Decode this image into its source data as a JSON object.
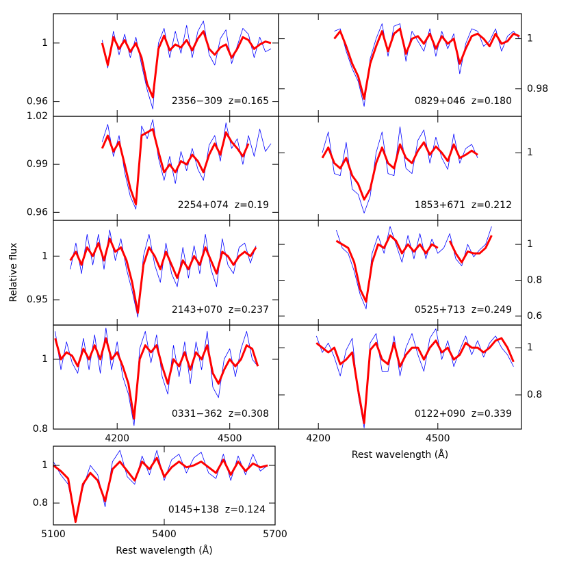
{
  "chart_data": [
    {
      "type": "line",
      "annotation": "2356−309  z=0.165",
      "yaxis_side": "left",
      "xlim": [
        4030,
        4630
      ],
      "xticks": [
        4200,
        4500
      ],
      "show_xtick_labels": false,
      "ylim": [
        0.95,
        1.02
      ],
      "yticks": [
        0.96,
        1
      ],
      "x": [
        4160,
        4175,
        4190,
        4205,
        4220,
        4235,
        4250,
        4265,
        4280,
        4295,
        4310,
        4325,
        4340,
        4355,
        4370,
        4385,
        4400,
        4415,
        4430,
        4445,
        4460,
        4475,
        4490,
        4505,
        4520,
        4535,
        4550,
        4565,
        4580,
        4595,
        4610
      ],
      "series": [
        {
          "color": "#0000ff",
          "values": [
            1.002,
            0.983,
            1.008,
            0.992,
            1.006,
            0.99,
            1.004,
            0.985,
            0.968,
            0.955,
            1.0,
            1.01,
            0.99,
            1.008,
            0.993,
            1.012,
            0.99,
            1.008,
            1.015,
            0.992,
            0.985,
            1.003,
            1.009,
            0.986,
            0.998,
            1.01,
            1.006,
            0.99,
            1.004,
            0.994,
            0.996
          ]
        },
        {
          "color": "#ff0000",
          "values": [
            1.0,
            0.985,
            1.004,
            0.996,
            1.002,
            0.994,
            1.0,
            0.99,
            0.972,
            0.963,
            0.996,
            1.005,
            0.995,
            0.999,
            0.997,
            1.002,
            0.995,
            1.003,
            1.008,
            0.996,
            0.992,
            0.997,
            0.999,
            0.99,
            0.996,
            1.004,
            1.002,
            0.996,
            0.999,
            1.001,
            1.0
          ]
        }
      ]
    },
    {
      "type": "line",
      "annotation": "0829+046  z=0.180",
      "yaxis_side": "right",
      "xlim": [
        4100,
        4710
      ],
      "xticks": [
        4200,
        4500
      ],
      "show_xtick_labels": false,
      "ylim": [
        0.969,
        1.01
      ],
      "yticks": [
        0.98,
        1
      ],
      "x": [
        4240,
        4255,
        4270,
        4285,
        4300,
        4315,
        4330,
        4345,
        4360,
        4375,
        4390,
        4405,
        4420,
        4435,
        4450,
        4465,
        4480,
        4495,
        4510,
        4525,
        4540,
        4555,
        4570,
        4585,
        4600,
        4615,
        4630,
        4645,
        4660,
        4675,
        4690,
        4705
      ],
      "series": [
        {
          "color": "#0000ff",
          "values": [
            1.003,
            1.004,
            0.995,
            0.988,
            0.983,
            0.973,
            0.992,
            1.0,
            1.006,
            0.993,
            1.005,
            1.006,
            0.991,
            1.003,
            0.999,
            0.995,
            1.004,
            0.993,
            1.003,
            0.996,
            1.002,
            0.986,
            0.998,
            1.004,
            1.003,
            0.997,
            0.999,
            1.004,
            0.995,
            1.001,
            1.003,
            1.0
          ]
        },
        {
          "color": "#ff0000",
          "values": [
            1.0,
            1.003,
            0.997,
            0.99,
            0.985,
            0.976,
            0.99,
            0.997,
            1.003,
            0.995,
            1.002,
            1.004,
            0.994,
            1.0,
            1.001,
            0.998,
            1.002,
            0.996,
            1.001,
            0.998,
            1.0,
            0.99,
            0.996,
            1.001,
            1.002,
            1.0,
            0.997,
            1.002,
            0.998,
            0.999,
            1.002,
            1.001
          ]
        }
      ]
    },
    {
      "type": "line",
      "annotation": "2254+074  z=0.19",
      "yaxis_side": "left",
      "xlim": [
        4030,
        4630
      ],
      "xticks": [
        4200,
        4500
      ],
      "show_xtick_labels": false,
      "ylim": [
        0.955,
        1.02
      ],
      "yticks": [
        0.96,
        0.99,
        1.02
      ],
      "x": [
        4160,
        4175,
        4190,
        4205,
        4220,
        4235,
        4250,
        4265,
        4280,
        4295,
        4310,
        4325,
        4340,
        4355,
        4370,
        4385,
        4400,
        4415,
        4430,
        4445,
        4460,
        4475,
        4490,
        4505,
        4520,
        4535,
        4550,
        4565,
        4580,
        4595,
        4610
      ],
      "series": [
        {
          "color": "#0000ff",
          "values": [
            1.004,
            1.015,
            0.995,
            1.008,
            0.985,
            0.97,
            0.962,
            1.014,
            1.006,
            1.018,
            0.994,
            0.98,
            0.995,
            0.978,
            0.998,
            0.986,
            1.0,
            0.987,
            0.98,
            1.002,
            1.008,
            0.992,
            1.016,
            1.0,
            1.006,
            0.99,
            1.008,
            0.995,
            1.012,
            0.998,
            1.003
          ]
        },
        {
          "color": "#ff0000",
          "values": [
            1.0,
            1.008,
            0.998,
            1.004,
            0.99,
            0.975,
            0.965,
            1.008,
            1.01,
            1.012,
            0.998,
            0.985,
            0.99,
            0.985,
            0.992,
            0.99,
            0.996,
            0.992,
            0.985,
            0.996,
            1.003,
            0.996,
            1.01,
            1.004,
            1.0,
            0.995,
            1.003,
            null,
            null,
            null,
            null
          ]
        }
      ]
    },
    {
      "type": "line",
      "annotation": "1853+671  z=0.212",
      "yaxis_side": "right",
      "xlim": [
        4100,
        4710
      ],
      "xticks": [
        4200,
        4500
      ],
      "show_xtick_labels": false,
      "ylim": [
        0.935,
        1.035
      ],
      "yticks": [
        1
      ],
      "x": [
        4210,
        4225,
        4240,
        4255,
        4270,
        4285,
        4300,
        4315,
        4330,
        4345,
        4360,
        4375,
        4390,
        4405,
        4420,
        4435,
        4450,
        4465,
        4480,
        4495,
        4510,
        4525,
        4540,
        4555,
        4570,
        4585,
        4600
      ],
      "series": [
        {
          "color": "#0000ff",
          "values": [
            1.0,
            1.02,
            0.98,
            0.978,
            1.01,
            0.965,
            0.96,
            0.942,
            0.958,
            1.0,
            1.02,
            0.98,
            0.978,
            1.025,
            0.985,
            0.98,
            1.012,
            1.022,
            0.99,
            1.015,
            0.995,
            0.984,
            1.018,
            0.99,
            1.004,
            1.008,
            0.995
          ]
        },
        {
          "color": "#ff0000",
          "values": [
            0.995,
            1.005,
            0.99,
            0.985,
            0.995,
            0.978,
            0.97,
            0.955,
            0.965,
            0.99,
            1.005,
            0.99,
            0.985,
            1.008,
            0.995,
            0.99,
            1.002,
            1.01,
            0.998,
            1.006,
            1.0,
            0.992,
            1.008,
            0.995,
            0.998,
            1.002,
            0.998
          ]
        }
      ]
    },
    {
      "type": "line",
      "annotation": "2143+070  z=0.237",
      "ylabel": "Relative flux",
      "yaxis_side": "left",
      "xlim": [
        4030,
        4630
      ],
      "xticks": [
        4200,
        4500
      ],
      "show_xtick_labels": false,
      "ylim": [
        0.921,
        1.041
      ],
      "yticks": [
        0.95,
        1
      ],
      "x": [
        4075,
        4090,
        4105,
        4120,
        4135,
        4150,
        4165,
        4180,
        4195,
        4210,
        4225,
        4240,
        4255,
        4270,
        4285,
        4300,
        4315,
        4330,
        4345,
        4360,
        4375,
        4390,
        4405,
        4420,
        4435,
        4450,
        4465,
        4480,
        4495,
        4510,
        4525,
        4540,
        4555,
        4570
      ],
      "series": [
        {
          "color": "#0000ff",
          "values": [
            0.985,
            1.015,
            0.98,
            1.025,
            0.99,
            1.025,
            0.985,
            1.03,
            0.995,
            1.02,
            0.985,
            0.96,
            0.93,
            1.0,
            1.025,
            0.99,
            0.97,
            1.015,
            0.98,
            0.965,
            1.01,
            0.975,
            1.012,
            0.98,
            1.025,
            0.985,
            0.965,
            1.02,
            0.99,
            0.98,
            1.01,
            1.015,
            0.992,
            1.012
          ]
        },
        {
          "color": "#ff0000",
          "values": [
            0.995,
            1.005,
            0.99,
            1.01,
            1.0,
            1.015,
            0.995,
            1.02,
            1.005,
            1.01,
            0.995,
            0.97,
            0.935,
            0.99,
            1.01,
            1.0,
            0.985,
            1.005,
            0.99,
            0.975,
            0.995,
            0.985,
            1.0,
            0.99,
            1.01,
            0.995,
            0.98,
            1.005,
            1.0,
            0.99,
            1.0,
            1.005,
            1.0,
            1.01
          ]
        }
      ]
    },
    {
      "type": "line",
      "annotation": "0525+713  z=0.249",
      "yaxis_side": "right",
      "xlim": [
        4100,
        4710
      ],
      "xticks": [
        4200,
        4500
      ],
      "show_xtick_labels": false,
      "ylim": [
        0.55,
        1.134
      ],
      "yticks": [
        0.6,
        0.8,
        1
      ],
      "x": [
        4245,
        4260,
        4275,
        4290,
        4305,
        4320,
        4335,
        4350,
        4365,
        4380,
        4395,
        4410,
        4425,
        4440,
        4455,
        4470,
        4485,
        4500,
        4515,
        4530,
        4545,
        4560,
        4575,
        4590,
        4605,
        4620,
        4635
      ],
      "series": [
        {
          "color": "#0000ff",
          "values": [
            1.08,
            0.98,
            0.95,
            0.85,
            0.72,
            0.64,
            0.95,
            1.05,
            0.95,
            1.1,
            1.0,
            0.9,
            1.05,
            0.92,
            1.06,
            0.92,
            1.03,
            0.95,
            0.98,
            1.06,
            0.92,
            0.88,
            1.0,
            0.93,
            0.97,
            1.0,
            1.1
          ]
        },
        {
          "color": "#ff0000",
          "values": [
            1.02,
            1.0,
            0.98,
            0.9,
            0.75,
            0.68,
            0.9,
            1.0,
            0.98,
            1.05,
            1.02,
            0.95,
            1.0,
            0.96,
            1.0,
            0.95,
            1.0,
            0.98,
            null,
            1.02,
            0.95,
            0.9,
            0.96,
            0.95,
            0.95,
            0.98,
            1.05
          ]
        }
      ]
    },
    {
      "type": "line",
      "annotation": "0331−362  z=0.308",
      "yaxis_side": "left",
      "xlim": [
        4030,
        4630
      ],
      "xticks": [
        4200,
        4500
      ],
      "show_xtick_labels": true,
      "ylim": [
        0.8,
        1.098
      ],
      "yticks": [
        0.8,
        1
      ],
      "x": [
        4035,
        4050,
        4065,
        4080,
        4095,
        4110,
        4125,
        4140,
        4155,
        4170,
        4185,
        4200,
        4215,
        4230,
        4245,
        4260,
        4275,
        4290,
        4305,
        4320,
        4335,
        4350,
        4365,
        4380,
        4395,
        4410,
        4425,
        4440,
        4455,
        4470,
        4485,
        4500,
        4515,
        4530,
        4545,
        4560,
        4575
      ],
      "series": [
        {
          "color": "#0000ff",
          "values": [
            1.08,
            0.97,
            1.05,
            0.99,
            0.96,
            1.06,
            0.97,
            1.07,
            0.96,
            1.09,
            0.97,
            1.05,
            0.95,
            0.9,
            0.81,
            1.03,
            1.08,
            0.99,
            1.07,
            0.95,
            0.9,
            1.04,
            0.95,
            1.05,
            0.93,
            1.05,
            0.97,
            1.08,
            0.92,
            0.89,
            1.0,
            1.03,
            0.95,
            1.03,
            1.08,
            1.0,
            0.98
          ]
        },
        {
          "color": "#ff0000",
          "values": [
            1.06,
            1.0,
            1.02,
            1.01,
            0.98,
            1.03,
            1.0,
            1.04,
            1.0,
            1.06,
            1.0,
            1.02,
            0.98,
            0.93,
            0.83,
            1.0,
            1.04,
            1.02,
            1.04,
            0.98,
            0.93,
            1.0,
            0.98,
            1.02,
            0.97,
            1.02,
            1.0,
            1.04,
            0.96,
            0.93,
            0.97,
            1.0,
            0.98,
            1.0,
            1.04,
            1.03,
            0.98
          ]
        }
      ]
    },
    {
      "type": "line",
      "annotation": "0122+090  z=0.339",
      "xlabel": "Rest wavelength (Å)",
      "yaxis_side": "right",
      "xlim": [
        4100,
        4710
      ],
      "xticks": [
        4200,
        4500
      ],
      "show_xtick_labels": true,
      "ylim": [
        0.655,
        1.096
      ],
      "yticks": [
        0.8,
        1
      ],
      "x": [
        4195,
        4210,
        4225,
        4240,
        4255,
        4270,
        4285,
        4300,
        4315,
        4330,
        4345,
        4360,
        4375,
        4390,
        4405,
        4420,
        4435,
        4450,
        4465,
        4480,
        4495,
        4510,
        4525,
        4540,
        4555,
        4570,
        4585,
        4600,
        4615,
        4630,
        4645,
        4660,
        4675,
        4690
      ],
      "series": [
        {
          "color": "#0000ff",
          "values": [
            1.05,
            0.98,
            1.02,
            0.96,
            0.88,
            0.99,
            1.04,
            0.8,
            0.66,
            1.02,
            1.06,
            0.9,
            0.9,
            1.05,
            0.88,
            1.0,
            1.06,
            0.97,
            0.9,
            1.04,
            1.08,
            0.95,
            1.03,
            0.92,
            0.99,
            1.05,
            0.97,
            1.03,
            0.96,
            1.02,
            1.05,
            1.0,
            0.97,
            0.92
          ]
        },
        {
          "color": "#ff0000",
          "values": [
            1.02,
            1.0,
            0.98,
            1.0,
            0.93,
            0.95,
            0.98,
            0.82,
            0.68,
            0.99,
            1.02,
            0.95,
            0.93,
            1.02,
            0.92,
            0.97,
            1.0,
            1.0,
            0.95,
            1.0,
            1.03,
            0.98,
            1.0,
            0.95,
            0.97,
            1.02,
            1.0,
            1.0,
            0.98,
            1.0,
            1.03,
            1.04,
            1.0,
            0.94
          ]
        }
      ]
    },
    {
      "type": "line",
      "annotation": "0145+138  z=0.124",
      "xlabel": "Rest wavelength (Å)",
      "yaxis_side": "left",
      "xlim": [
        5100,
        5700
      ],
      "xticks": [
        5100,
        5400,
        5700
      ],
      "show_xtick_labels": true,
      "ylim": [
        0.684,
        1.102
      ],
      "yticks": [
        0.8,
        1
      ],
      "x": [
        5100,
        5120,
        5140,
        5160,
        5180,
        5200,
        5220,
        5240,
        5260,
        5280,
        5300,
        5320,
        5340,
        5360,
        5380,
        5400,
        5420,
        5440,
        5460,
        5480,
        5500,
        5520,
        5540,
        5560,
        5580,
        5600,
        5620,
        5640,
        5660,
        5680
      ],
      "series": [
        {
          "color": "#0000ff",
          "values": [
            1.02,
            0.95,
            0.9,
            0.7,
            0.88,
            1.0,
            0.95,
            0.78,
            1.02,
            1.08,
            0.94,
            0.9,
            1.05,
            0.95,
            1.08,
            0.92,
            1.03,
            1.06,
            0.96,
            1.04,
            1.07,
            0.96,
            0.93,
            1.06,
            0.92,
            1.05,
            0.95,
            1.06,
            0.97,
            1.0
          ]
        },
        {
          "color": "#ff0000",
          "values": [
            1.0,
            0.97,
            0.93,
            0.7,
            0.9,
            0.96,
            0.92,
            0.81,
            0.98,
            1.02,
            0.97,
            0.92,
            1.02,
            0.98,
            1.04,
            0.94,
            0.99,
            1.02,
            0.99,
            1.0,
            1.02,
            0.99,
            0.96,
            1.03,
            0.95,
            1.02,
            0.97,
            1.01,
            0.99,
            1.0
          ]
        }
      ]
    }
  ]
}
